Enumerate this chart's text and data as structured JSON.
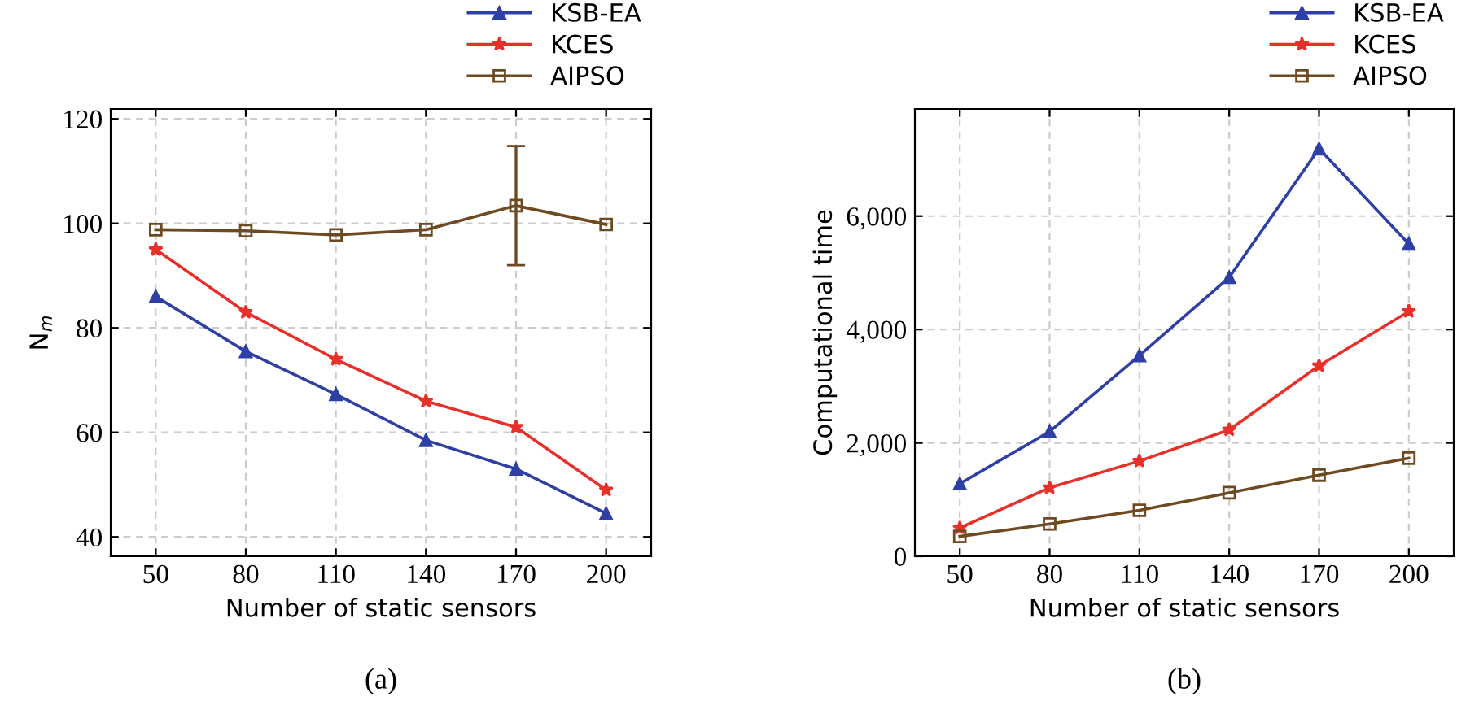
{
  "chart_data": [
    {
      "type": "line",
      "xlabel": "Number of static sensors",
      "ylabel": "N$_{m}$",
      "annotations": [
        "(a)"
      ],
      "x": [
        50,
        80,
        110,
        140,
        170,
        200
      ],
      "xlim": [
        35,
        215
      ],
      "xticks": [
        50,
        80,
        110,
        140,
        170,
        200
      ],
      "ylim": [
        36.3,
        121.9
      ],
      "yticks": [
        40,
        60,
        80,
        100,
        120
      ],
      "grid": true,
      "legend": "top right",
      "series": [
        {
          "name": "KSB-EA",
          "color": "#2e3fa6",
          "marker": "triangle",
          "values": [
            86,
            75.5,
            67.3,
            58.5,
            53,
            44.5
          ]
        },
        {
          "name": "KCES",
          "color": "#e8302a",
          "marker": "star",
          "values": [
            95,
            83,
            74,
            66,
            61,
            49
          ]
        },
        {
          "name": "AIPSO",
          "color": "#6e4a22",
          "marker": "square",
          "values": [
            98.8,
            98.6,
            97.8,
            98.8,
            103.4,
            99.8
          ],
          "errors": [
            null,
            null,
            null,
            null,
            [
              92,
              114.8
            ],
            null
          ]
        }
      ]
    },
    {
      "type": "line",
      "xlabel": "Number of static sensors",
      "ylabel": "Computational time",
      "annotations": [
        "(b)"
      ],
      "x": [
        50,
        80,
        110,
        140,
        170,
        200
      ],
      "xlim": [
        35,
        215
      ],
      "xticks": [
        50,
        80,
        110,
        140,
        170,
        200
      ],
      "ylim": [
        0,
        7890
      ],
      "yticks": [
        0,
        {
          "value": 2000,
          "label": "2,000"
        },
        {
          "value": 4000,
          "label": "4,000"
        },
        {
          "value": 6000,
          "label": "6,000"
        }
      ],
      "grid": true,
      "legend": "top right",
      "series": [
        {
          "name": "KSB-EA",
          "color": "#2e3fa6",
          "marker": "triangle",
          "values": [
            1280,
            2200,
            3540,
            4920,
            7190,
            5510
          ]
        },
        {
          "name": "KCES",
          "color": "#e8302a",
          "marker": "star",
          "values": [
            500,
            1210,
            1680,
            2230,
            3360,
            4320
          ]
        },
        {
          "name": "AIPSO",
          "color": "#6e4a22",
          "marker": "square",
          "values": [
            350,
            570,
            810,
            1120,
            1430,
            1730
          ]
        }
      ]
    }
  ]
}
